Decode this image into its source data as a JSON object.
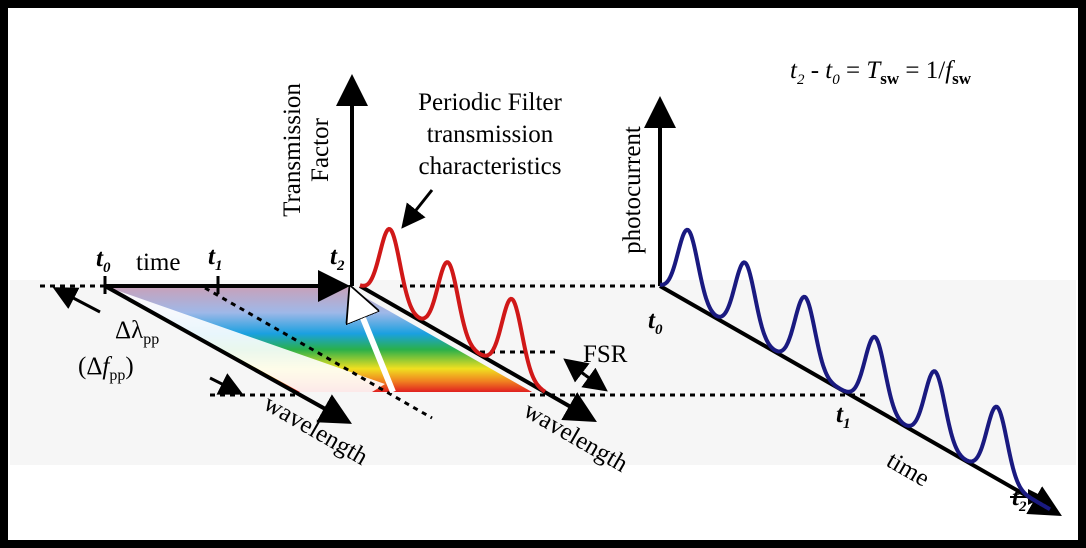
{
  "equation": [
    "t",
    "2",
    " - t",
    "0",
    " = ",
    "T",
    "sw",
    " = 1/",
    "f",
    "sw"
  ],
  "transmission_axis": [
    "Transmission",
    "Factor"
  ],
  "filter_note": [
    "Periodic Filter",
    "transmission",
    "characteristics"
  ],
  "photocurrent_axis": "photocurrent",
  "time_labels": [
    "time",
    "time"
  ],
  "wavelength_labels": [
    "wavelength",
    "wavelength"
  ],
  "time_marks": [
    {
      "symbol": "t",
      "index": "0"
    },
    {
      "symbol": "t",
      "index": "1"
    },
    {
      "symbol": "t",
      "index": "2"
    },
    {
      "symbol": "t",
      "index": "0"
    },
    {
      "symbol": "t",
      "index": "1"
    },
    {
      "symbol": "t",
      "index": "2"
    }
  ],
  "delta_lambda": {
    "symbol": "Δλ",
    "sub": "pp"
  },
  "delta_f": {
    "open": "(Δ",
    "symbol": "f",
    "sub": "pp",
    "close": ")"
  },
  "fsr": "FSR"
}
